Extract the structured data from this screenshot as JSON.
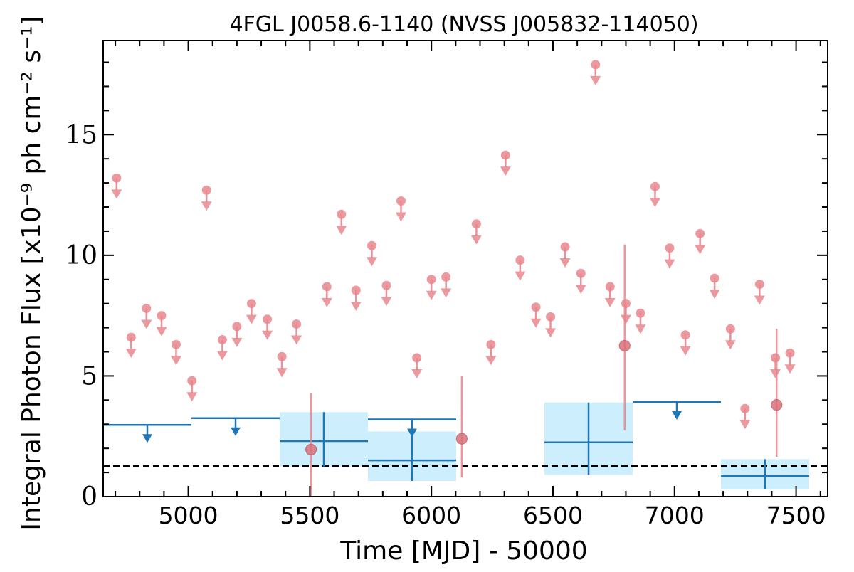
{
  "chart_data": {
    "type": "scatter",
    "title": "4FGL J0058.6-1140 (NVSS J005832-114050)",
    "xlabel": "Time [MJD] - 50000",
    "ylabel": "Integral Photon Flux [x10⁻⁹ ph cm⁻² s⁻¹]",
    "xlim": [
      4650,
      7630
    ],
    "ylim": [
      0,
      18.9
    ],
    "xticks": [
      5000,
      5500,
      6000,
      6500,
      7000,
      7500
    ],
    "xtick_labels": [
      "5000",
      "5500",
      "6000",
      "6500",
      "7000",
      "7500"
    ],
    "yticks": [
      0,
      5,
      10,
      15
    ],
    "ytick_labels": [
      "0",
      "5",
      "10",
      "15"
    ],
    "grid": false,
    "reference_line": {
      "style": "dashed",
      "color": "#000000",
      "y": 1.27
    },
    "colors": {
      "fine": "#e8868d",
      "coarse": "#1f77b4",
      "band": "#cdeefc"
    },
    "series": [
      {
        "binning": "fine",
        "upper_limits": [
          {
            "x": 4705,
            "y": 13.2
          },
          {
            "x": 4765,
            "y": 6.6
          },
          {
            "x": 4828,
            "y": 7.8
          },
          {
            "x": 4890,
            "y": 7.5
          },
          {
            "x": 4950,
            "y": 6.3
          },
          {
            "x": 5015,
            "y": 4.8
          },
          {
            "x": 5075,
            "y": 12.7
          },
          {
            "x": 5140,
            "y": 6.5
          },
          {
            "x": 5200,
            "y": 7.05
          },
          {
            "x": 5260,
            "y": 8.0
          },
          {
            "x": 5325,
            "y": 7.35
          },
          {
            "x": 5385,
            "y": 5.8
          },
          {
            "x": 5445,
            "y": 7.15
          },
          {
            "x": 5570,
            "y": 8.7
          },
          {
            "x": 5630,
            "y": 11.7
          },
          {
            "x": 5690,
            "y": 8.55
          },
          {
            "x": 5755,
            "y": 10.4
          },
          {
            "x": 5815,
            "y": 8.75
          },
          {
            "x": 5875,
            "y": 12.25
          },
          {
            "x": 5940,
            "y": 5.75
          },
          {
            "x": 6000,
            "y": 9.0
          },
          {
            "x": 6060,
            "y": 9.1
          },
          {
            "x": 6185,
            "y": 11.3
          },
          {
            "x": 6245,
            "y": 6.3
          },
          {
            "x": 6305,
            "y": 14.15
          },
          {
            "x": 6365,
            "y": 9.8
          },
          {
            "x": 6430,
            "y": 7.85
          },
          {
            "x": 6490,
            "y": 7.45
          },
          {
            "x": 6550,
            "y": 10.35
          },
          {
            "x": 6615,
            "y": 9.25
          },
          {
            "x": 6675,
            "y": 17.9
          },
          {
            "x": 6735,
            "y": 8.7
          },
          {
            "x": 6800,
            "y": 8.0
          },
          {
            "x": 6860,
            "y": 7.6
          },
          {
            "x": 6920,
            "y": 12.85
          },
          {
            "x": 6980,
            "y": 10.3
          },
          {
            "x": 7045,
            "y": 6.7
          },
          {
            "x": 7105,
            "y": 10.9
          },
          {
            "x": 7165,
            "y": 9.05
          },
          {
            "x": 7230,
            "y": 6.95
          },
          {
            "x": 7290,
            "y": 3.65
          },
          {
            "x": 7350,
            "y": 8.8
          },
          {
            "x": 7415,
            "y": 5.75
          },
          {
            "x": 7475,
            "y": 5.95
          }
        ],
        "detections": [
          {
            "x": 5505,
            "y": 1.95,
            "ylo": 0.0,
            "yhi": 4.3
          },
          {
            "x": 6125,
            "y": 2.4,
            "ylo": 0.8,
            "yhi": 5.0
          },
          {
            "x": 6795,
            "y": 6.25,
            "ylo": 2.75,
            "yhi": 10.45
          },
          {
            "x": 7420,
            "y": 3.8,
            "ylo": 1.65,
            "yhi": 6.95
          }
        ]
      },
      {
        "binning": "coarse",
        "upper_limits": [
          {
            "x0": 4650,
            "x1": 5013,
            "y": 2.97
          },
          {
            "x0": 5013,
            "x1": 5376,
            "y": 3.25
          },
          {
            "x0": 5739,
            "x1": 6102,
            "y": 3.2
          },
          {
            "x0": 6828,
            "x1": 7191,
            "y": 3.92
          }
        ],
        "detections": [
          {
            "x0": 5376,
            "x1": 5739,
            "y": 2.3,
            "ylo": 1.25,
            "yhi": 3.5
          },
          {
            "x0": 5739,
            "x1": 6102,
            "y": 1.5,
            "ylo": 0.65,
            "yhi": 2.7
          },
          {
            "x0": 6465,
            "x1": 6828,
            "y": 2.25,
            "ylo": 0.9,
            "yhi": 3.9
          },
          {
            "x0": 7191,
            "x1": 7554,
            "y": 0.85,
            "ylo": 0.3,
            "yhi": 1.55
          }
        ]
      }
    ]
  }
}
